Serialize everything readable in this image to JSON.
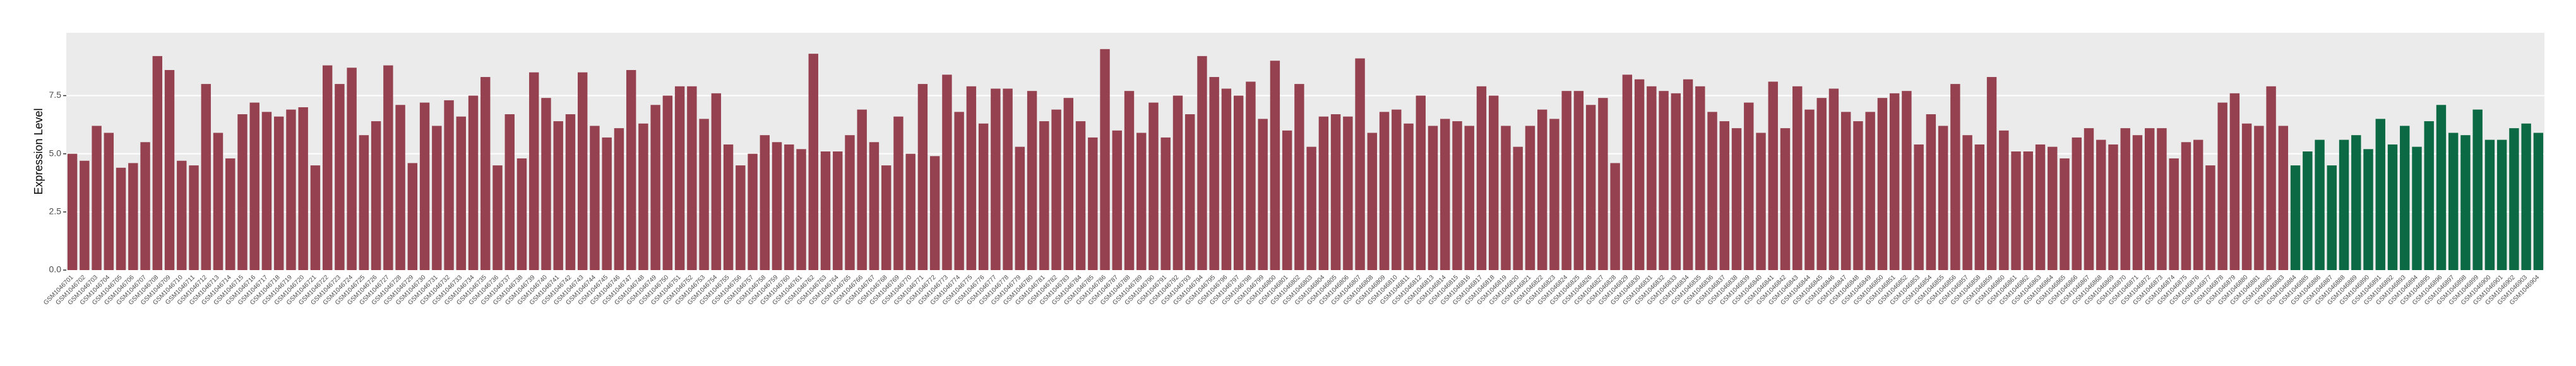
{
  "chart_data": {
    "type": "bar",
    "y_label": "Expression Level",
    "categories": [
      "GSM1046701",
      "GSM1046702",
      "GSM1046703",
      "GSM1046704",
      "GSM1046705",
      "GSM1046706",
      "GSM1046707",
      "GSM1046708",
      "GSM1046709",
      "GSM1046710",
      "GSM1046711",
      "GSM1046712",
      "GSM1046713",
      "GSM1046714",
      "GSM1046715",
      "GSM1046716",
      "GSM1046717",
      "GSM1046718",
      "GSM1046719",
      "GSM1046720",
      "GSM1046721",
      "GSM1046722",
      "GSM1046723",
      "GSM1046724",
      "GSM1046725",
      "GSM1046726",
      "GSM1046727",
      "GSM1046728",
      "GSM1046729",
      "GSM1046730",
      "GSM1046731",
      "GSM1046732",
      "GSM1046733",
      "GSM1046734",
      "GSM1046735",
      "GSM1046736",
      "GSM1046737",
      "GSM1046738",
      "GSM1046739",
      "GSM1046740",
      "GSM1046741",
      "GSM1046742",
      "GSM1046743",
      "GSM1046744",
      "GSM1046745",
      "GSM1046746",
      "GSM1046747",
      "GSM1046748",
      "GSM1046749",
      "GSM1046750",
      "GSM1046751",
      "GSM1046752",
      "GSM1046753",
      "GSM1046754",
      "GSM1046755",
      "GSM1046756",
      "GSM1046757",
      "GSM1046758",
      "GSM1046759",
      "GSM1046760",
      "GSM1046761",
      "GSM1046762",
      "GSM1046763",
      "GSM1046764",
      "GSM1046765",
      "GSM1046766",
      "GSM1046767",
      "GSM1046768",
      "GSM1046769",
      "GSM1046770",
      "GSM1046771",
      "GSM1046772",
      "GSM1046773",
      "GSM1046774",
      "GSM1046775",
      "GSM1046776",
      "GSM1046777",
      "GSM1046778",
      "GSM1046779",
      "GSM1046780",
      "GSM1046781",
      "GSM1046782",
      "GSM1046783",
      "GSM1046784",
      "GSM1046785",
      "GSM1046786",
      "GSM1046787",
      "GSM1046788",
      "GSM1046789",
      "GSM1046790",
      "GSM1046791",
      "GSM1046792",
      "GSM1046793",
      "GSM1046794",
      "GSM1046795",
      "GSM1046796",
      "GSM1046797",
      "GSM1046798",
      "GSM1046799",
      "GSM1046800",
      "GSM1046801",
      "GSM1046802",
      "GSM1046803",
      "GSM1046804",
      "GSM1046805",
      "GSM1046806",
      "GSM1046807",
      "GSM1046808",
      "GSM1046809",
      "GSM1046810",
      "GSM1046811",
      "GSM1046812",
      "GSM1046813",
      "GSM1046814",
      "GSM1046815",
      "GSM1046816",
      "GSM1046817",
      "GSM1046818",
      "GSM1046819",
      "GSM1046820",
      "GSM1046821",
      "GSM1046822",
      "GSM1046823",
      "GSM1046824",
      "GSM1046825",
      "GSM1046826",
      "GSM1046827",
      "GSM1046828",
      "GSM1046829",
      "GSM1046830",
      "GSM1046831",
      "GSM1046832",
      "GSM1046833",
      "GSM1046834",
      "GSM1046835",
      "GSM1046836",
      "GSM1046837",
      "GSM1046838",
      "GSM1046839",
      "GSM1046840",
      "GSM1046841",
      "GSM1046842",
      "GSM1046843",
      "GSM1046844",
      "GSM1046845",
      "GSM1046846",
      "GSM1046847",
      "GSM1046848",
      "GSM1046849",
      "GSM1046850",
      "GSM1046851",
      "GSM1046852",
      "GSM1046853",
      "GSM1046854",
      "GSM1046855",
      "GSM1046856",
      "GSM1046857",
      "GSM1046858",
      "GSM1046859",
      "GSM1046860",
      "GSM1046861",
      "GSM1046862",
      "GSM1046863",
      "GSM1046864",
      "GSM1046865",
      "GSM1046866",
      "GSM1046867",
      "GSM1046868",
      "GSM1046869",
      "GSM1046870",
      "GSM1046871",
      "GSM1046872",
      "GSM1046873",
      "GSM1046874",
      "GSM1046875",
      "GSM1046876",
      "GSM1046877",
      "GSM1046878",
      "GSM1046879",
      "GSM1046880",
      "GSM1046881",
      "GSM1046882",
      "GSM1046883",
      "GSM1046884",
      "GSM1046885",
      "GSM1046886",
      "GSM1046887",
      "GSM1046888",
      "GSM1046889",
      "GSM1046890",
      "GSM1046891",
      "GSM1046892",
      "GSM1046893",
      "GSM1046894",
      "GSM1046895",
      "GSM1046896",
      "GSM1046897",
      "GSM1046898",
      "GSM1046899",
      "GSM1046900",
      "GSM1046901",
      "GSM1046902",
      "GSM1046903",
      "GSM1046904"
    ],
    "values": [
      5.0,
      4.7,
      6.2,
      5.9,
      4.4,
      4.6,
      5.5,
      9.2,
      8.6,
      4.7,
      4.5,
      8.0,
      5.9,
      4.8,
      6.7,
      7.2,
      6.8,
      6.6,
      6.9,
      7.0,
      4.5,
      8.8,
      8.0,
      8.7,
      5.8,
      6.4,
      8.8,
      7.1,
      4.6,
      7.2,
      6.2,
      7.3,
      6.6,
      7.5,
      8.3,
      4.5,
      6.7,
      4.8,
      8.5,
      7.4,
      6.4,
      6.7,
      8.5,
      6.2,
      5.7,
      6.1,
      8.6,
      6.3,
      7.1,
      7.5,
      7.9,
      7.9,
      6.5,
      7.6,
      5.4,
      4.5,
      5.0,
      5.8,
      5.5,
      5.4,
      5.2,
      9.3,
      5.1,
      5.1,
      5.8,
      6.9,
      5.5,
      4.5,
      6.6,
      5.0,
      8.0,
      4.9,
      8.4,
      6.8,
      7.9,
      6.3,
      7.8,
      7.8,
      5.3,
      7.7,
      6.4,
      6.9,
      7.4,
      6.4,
      5.7,
      9.5,
      6.0,
      7.7,
      5.9,
      7.2,
      5.7,
      7.5,
      6.7,
      9.2,
      8.3,
      7.8,
      7.5,
      8.1,
      6.5,
      9.0,
      6.0,
      8.0,
      5.3,
      6.6,
      6.7,
      6.6,
      9.1,
      5.9,
      6.8,
      6.9,
      6.3,
      7.5,
      6.2,
      6.5,
      6.4,
      6.2,
      7.9,
      7.5,
      6.2,
      5.3,
      6.2,
      6.9,
      6.5,
      7.7,
      7.7,
      7.1,
      7.4,
      4.6,
      8.4,
      8.2,
      7.9,
      7.7,
      7.6,
      8.2,
      7.9,
      6.8,
      6.4,
      6.1,
      7.2,
      5.9,
      8.1,
      6.1,
      7.9,
      6.9,
      7.4,
      7.8,
      6.8,
      6.4,
      6.8,
      7.4,
      7.6,
      7.7,
      5.4,
      6.7,
      6.2,
      8.0,
      5.8,
      5.4,
      8.3,
      6.0,
      5.1,
      5.1,
      5.4,
      5.3,
      4.8,
      5.7,
      6.1,
      5.6,
      5.4,
      6.1,
      5.8,
      6.1,
      6.1,
      4.8,
      5.5,
      5.6,
      4.5,
      7.2,
      7.6,
      6.3,
      6.2,
      7.9,
      6.2,
      4.5,
      5.1,
      5.6,
      4.5,
      5.6,
      5.8,
      5.2,
      6.5,
      5.4,
      6.2,
      5.3,
      6.4,
      7.1,
      5.9,
      5.8,
      6.9,
      5.6,
      5.6,
      6.1,
      6.3,
      5.9
    ],
    "colors": [
      "#95414f",
      "#95414f",
      "#95414f",
      "#95414f",
      "#95414f",
      "#95414f",
      "#95414f",
      "#95414f",
      "#95414f",
      "#95414f",
      "#95414f",
      "#95414f",
      "#95414f",
      "#95414f",
      "#95414f",
      "#95414f",
      "#95414f",
      "#95414f",
      "#95414f",
      "#95414f",
      "#95414f",
      "#95414f",
      "#95414f",
      "#95414f",
      "#95414f",
      "#95414f",
      "#95414f",
      "#95414f",
      "#95414f",
      "#95414f",
      "#95414f",
      "#95414f",
      "#95414f",
      "#95414f",
      "#95414f",
      "#95414f",
      "#95414f",
      "#95414f",
      "#95414f",
      "#95414f",
      "#95414f",
      "#95414f",
      "#95414f",
      "#95414f",
      "#95414f",
      "#95414f",
      "#95414f",
      "#95414f",
      "#95414f",
      "#95414f",
      "#95414f",
      "#95414f",
      "#95414f",
      "#95414f",
      "#95414f",
      "#95414f",
      "#95414f",
      "#95414f",
      "#95414f",
      "#95414f",
      "#95414f",
      "#95414f",
      "#95414f",
      "#95414f",
      "#95414f",
      "#95414f",
      "#95414f",
      "#95414f",
      "#95414f",
      "#95414f",
      "#95414f",
      "#95414f",
      "#95414f",
      "#95414f",
      "#95414f",
      "#95414f",
      "#95414f",
      "#95414f",
      "#95414f",
      "#95414f",
      "#95414f",
      "#95414f",
      "#95414f",
      "#95414f",
      "#95414f",
      "#95414f",
      "#95414f",
      "#95414f",
      "#95414f",
      "#95414f",
      "#95414f",
      "#95414f",
      "#95414f",
      "#95414f",
      "#95414f",
      "#95414f",
      "#95414f",
      "#95414f",
      "#95414f",
      "#95414f",
      "#95414f",
      "#95414f",
      "#95414f",
      "#95414f",
      "#95414f",
      "#95414f",
      "#95414f",
      "#95414f",
      "#95414f",
      "#95414f",
      "#95414f",
      "#95414f",
      "#95414f",
      "#95414f",
      "#95414f",
      "#95414f",
      "#95414f",
      "#95414f",
      "#95414f",
      "#95414f",
      "#95414f",
      "#95414f",
      "#95414f",
      "#95414f",
      "#95414f",
      "#95414f",
      "#95414f",
      "#95414f",
      "#95414f",
      "#95414f",
      "#95414f",
      "#95414f",
      "#95414f",
      "#95414f",
      "#95414f",
      "#95414f",
      "#95414f",
      "#95414f",
      "#95414f",
      "#95414f",
      "#95414f",
      "#95414f",
      "#95414f",
      "#95414f",
      "#95414f",
      "#95414f",
      "#95414f",
      "#95414f",
      "#95414f",
      "#95414f",
      "#95414f",
      "#95414f",
      "#95414f",
      "#95414f",
      "#95414f",
      "#95414f",
      "#95414f",
      "#95414f",
      "#95414f",
      "#95414f",
      "#95414f",
      "#95414f",
      "#95414f",
      "#95414f",
      "#95414f",
      "#95414f",
      "#95414f",
      "#95414f",
      "#95414f",
      "#95414f",
      "#95414f",
      "#95414f",
      "#95414f",
      "#95414f",
      "#95414f",
      "#95414f",
      "#95414f",
      "#95414f",
      "#95414f",
      "#95414f",
      "#95414f",
      "#95414f",
      "#95414f",
      "#0b6a43",
      "#0b6a43",
      "#0b6a43",
      "#0b6a43",
      "#0b6a43",
      "#0b6a43",
      "#0b6a43",
      "#0b6a43",
      "#0b6a43",
      "#0b6a43",
      "#0b6a43",
      "#0b6a43",
      "#0b6a43",
      "#0b6a43",
      "#0b6a43",
      "#0b6a43",
      "#0b6a43",
      "#0b6a43",
      "#0b6a43",
      "#0b6a43",
      "#0b6a43"
    ],
    "ylim": [
      0,
      10.2
    ],
    "yticks": [
      {
        "value": 0,
        "label": "0.0"
      },
      {
        "value": 2.5,
        "label": "2.5"
      },
      {
        "value": 5,
        "label": "5.0"
      },
      {
        "value": 7.5,
        "label": "7.5"
      }
    ],
    "grid": true
  }
}
